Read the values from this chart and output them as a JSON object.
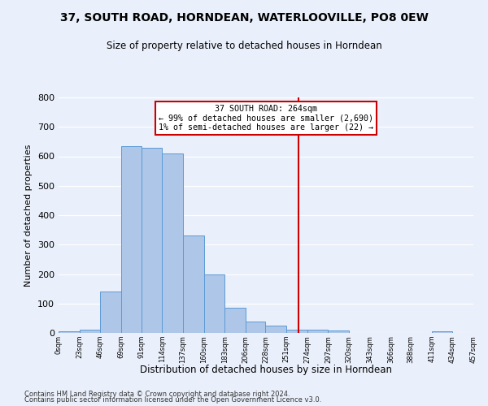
{
  "title": "37, SOUTH ROAD, HORNDEAN, WATERLOOVILLE, PO8 0EW",
  "subtitle": "Size of property relative to detached houses in Horndean",
  "xlabel": "Distribution of detached houses by size in Horndean",
  "ylabel": "Number of detached properties",
  "footnote1": "Contains HM Land Registry data © Crown copyright and database right 2024.",
  "footnote2": "Contains public sector information licensed under the Open Government Licence v3.0.",
  "bin_edges": [
    0,
    23,
    46,
    69,
    91,
    114,
    137,
    160,
    183,
    206,
    228,
    251,
    274,
    297,
    320,
    343,
    366,
    388,
    411,
    434,
    457
  ],
  "bar_heights": [
    5,
    10,
    140,
    635,
    630,
    610,
    330,
    200,
    85,
    40,
    25,
    10,
    10,
    8,
    0,
    0,
    0,
    0,
    5,
    0
  ],
  "bar_color": "#aec6e8",
  "bar_edge_color": "#5b9bd5",
  "background_color": "#eaf0fb",
  "grid_color": "#ffffff",
  "property_size": 264,
  "annotation_title": "37 SOUTH ROAD: 264sqm",
  "annotation_line1": "← 99% of detached houses are smaller (2,690)",
  "annotation_line2": "1% of semi-detached houses are larger (22) →",
  "vline_color": "#cc0000",
  "annotation_box_color": "#ffffff",
  "annotation_box_edge": "#cc0000",
  "ylim": [
    0,
    800
  ],
  "yticks": [
    0,
    100,
    200,
    300,
    400,
    500,
    600,
    700,
    800
  ]
}
